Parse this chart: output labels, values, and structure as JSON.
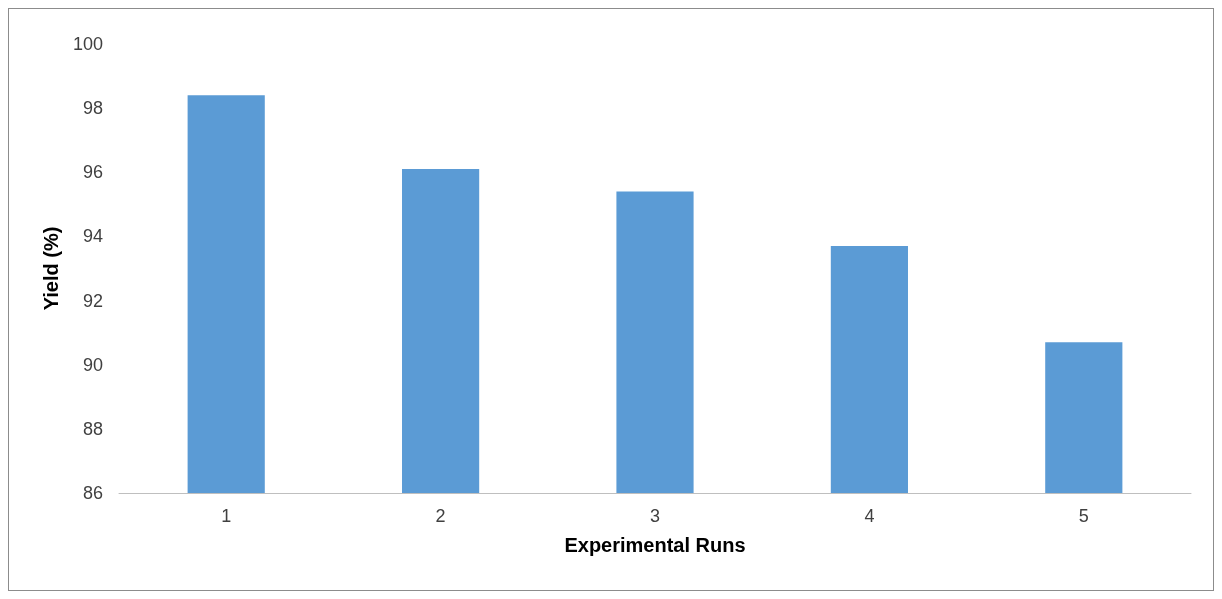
{
  "chart_data": {
    "type": "bar",
    "xlabel": "Experimental Runs",
    "ylabel": "Yield (%)",
    "categories": [
      "1",
      "2",
      "3",
      "4",
      "5"
    ],
    "values": [
      98.4,
      96.1,
      95.4,
      93.7,
      90.7
    ],
    "color": "#5b9bd5",
    "ylim": [
      86,
      100
    ],
    "yticks": [
      86,
      88,
      90,
      92,
      94,
      96,
      98,
      100
    ],
    "grid": false
  }
}
